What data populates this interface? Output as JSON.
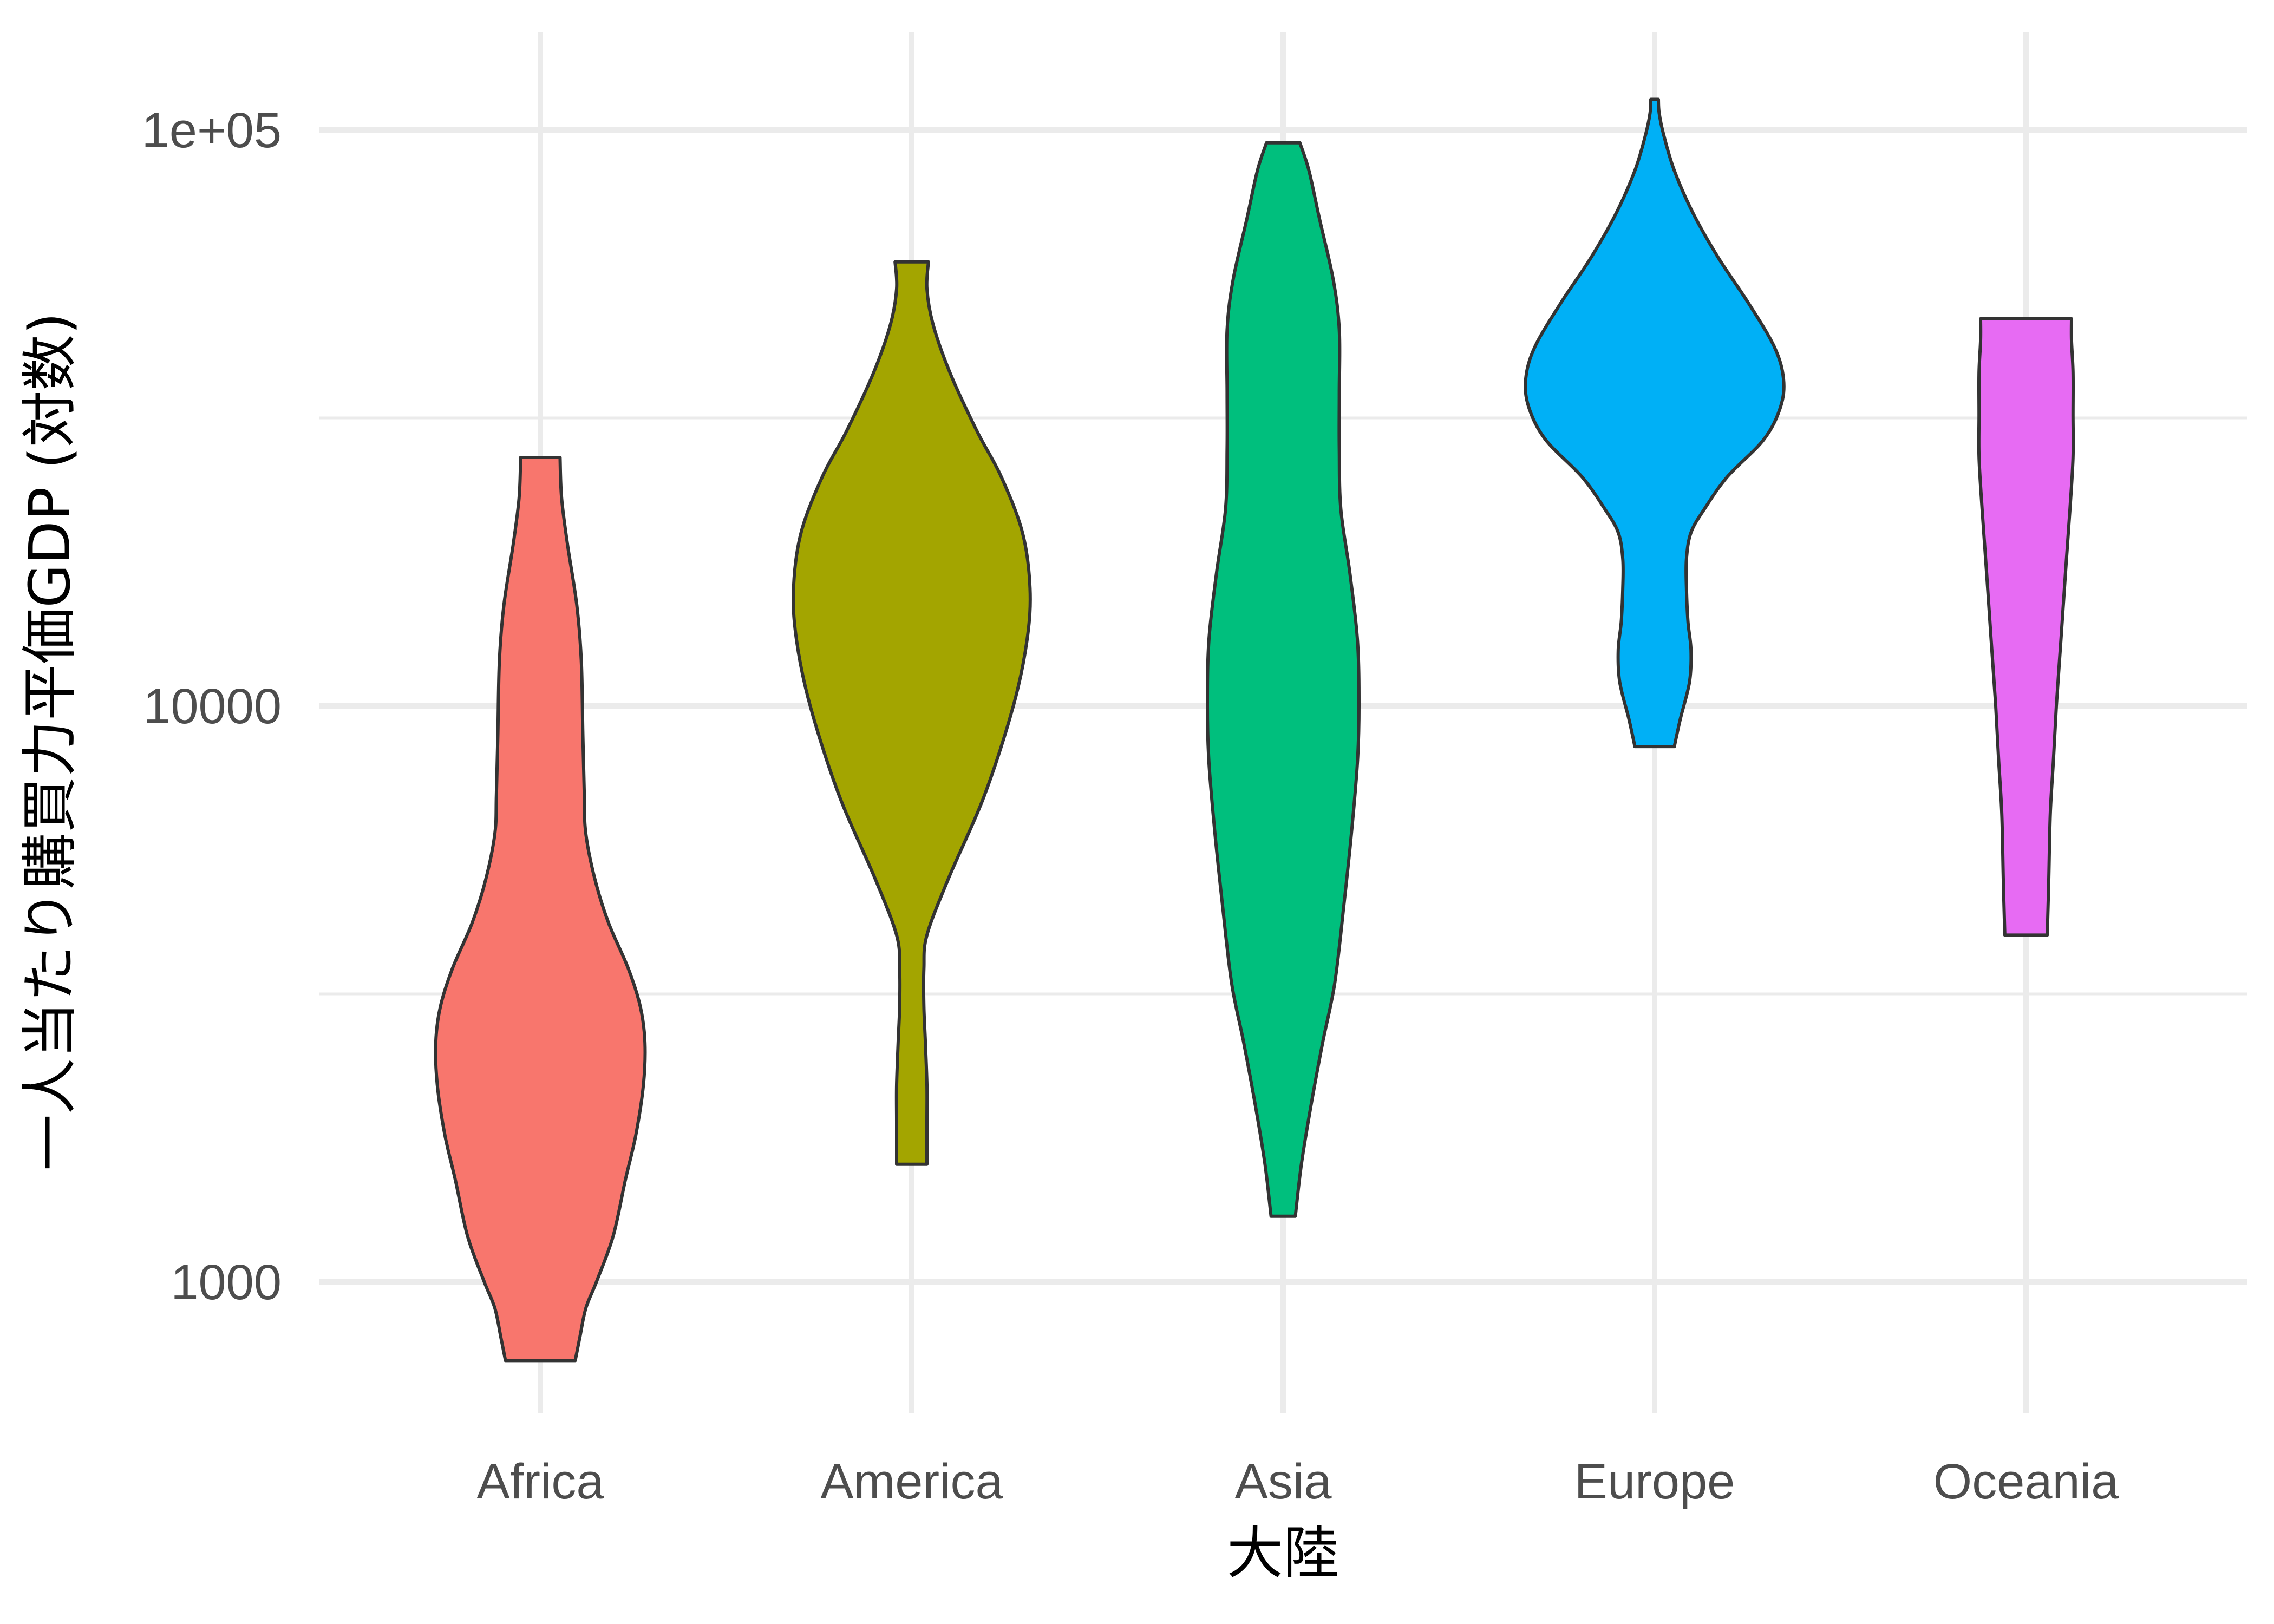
{
  "chart_data": {
    "type": "violin",
    "xlabel": "大陸",
    "ylabel": "一人当たり購買力平価GDP (対数)",
    "y_scale": "log10",
    "ylim": [
      500,
      150000
    ],
    "y_ticks": [
      {
        "value": 1000,
        "label": "1000"
      },
      {
        "value": 10000,
        "label": "10000"
      },
      {
        "value": 100000,
        "label": "1e+05"
      }
    ],
    "y_minor_ticks": [
      3162,
      31623
    ],
    "grid": true,
    "legend": "none",
    "categories": [
      "Africa",
      "America",
      "Asia",
      "Europe",
      "Oceania"
    ],
    "series": [
      {
        "category": "Africa",
        "color": "#F8766D",
        "min": 730,
        "max": 27000,
        "profile": [
          [
            730,
            0.23
          ],
          [
            800,
            0.26
          ],
          [
            900,
            0.3
          ],
          [
            1000,
            0.37
          ],
          [
            1200,
            0.48
          ],
          [
            1500,
            0.56
          ],
          [
            1800,
            0.63
          ],
          [
            2200,
            0.68
          ],
          [
            2600,
            0.69
          ],
          [
            3000,
            0.66
          ],
          [
            3500,
            0.58
          ],
          [
            4200,
            0.45
          ],
          [
            5000,
            0.36
          ],
          [
            6000,
            0.3
          ],
          [
            7000,
            0.29
          ],
          [
            9000,
            0.28
          ],
          [
            12000,
            0.27
          ],
          [
            15000,
            0.24
          ],
          [
            19000,
            0.18
          ],
          [
            23000,
            0.14
          ],
          [
            27000,
            0.13
          ]
        ]
      },
      {
        "category": "America",
        "color": "#A3A500",
        "min": 1600,
        "max": 59000,
        "profile": [
          [
            1600,
            0.1
          ],
          [
            1900,
            0.1
          ],
          [
            2200,
            0.1
          ],
          [
            2600,
            0.09
          ],
          [
            3000,
            0.08
          ],
          [
            3500,
            0.08
          ],
          [
            4000,
            0.1
          ],
          [
            5000,
            0.24
          ],
          [
            7000,
            0.48
          ],
          [
            10000,
            0.67
          ],
          [
            13000,
            0.76
          ],
          [
            16000,
            0.78
          ],
          [
            20000,
            0.73
          ],
          [
            25000,
            0.59
          ],
          [
            30000,
            0.43
          ],
          [
            38000,
            0.25
          ],
          [
            46000,
            0.14
          ],
          [
            53000,
            0.1
          ],
          [
            59000,
            0.11
          ]
        ]
      },
      {
        "category": "Asia",
        "color": "#00BF7D",
        "min": 1300,
        "max": 95000,
        "profile": [
          [
            1300,
            0.08
          ],
          [
            1600,
            0.12
          ],
          [
            2000,
            0.18
          ],
          [
            2600,
            0.26
          ],
          [
            3300,
            0.34
          ],
          [
            4500,
            0.4
          ],
          [
            6000,
            0.45
          ],
          [
            8000,
            0.49
          ],
          [
            10000,
            0.5
          ],
          [
            13000,
            0.49
          ],
          [
            17000,
            0.44
          ],
          [
            22000,
            0.38
          ],
          [
            28000,
            0.37
          ],
          [
            35000,
            0.37
          ],
          [
            45000,
            0.37
          ],
          [
            55000,
            0.33
          ],
          [
            70000,
            0.24
          ],
          [
            85000,
            0.17
          ],
          [
            95000,
            0.11
          ]
        ]
      },
      {
        "category": "Europe",
        "color": "#00B0F6",
        "min": 8500,
        "max": 113000,
        "profile": [
          [
            8500,
            0.13
          ],
          [
            9500,
            0.17
          ],
          [
            11000,
            0.23
          ],
          [
            12500,
            0.24
          ],
          [
            14000,
            0.22
          ],
          [
            16000,
            0.21
          ],
          [
            18000,
            0.21
          ],
          [
            20000,
            0.24
          ],
          [
            22000,
            0.33
          ],
          [
            25000,
            0.48
          ],
          [
            29000,
            0.72
          ],
          [
            33000,
            0.83
          ],
          [
            37000,
            0.85
          ],
          [
            42000,
            0.79
          ],
          [
            50000,
            0.62
          ],
          [
            60000,
            0.42
          ],
          [
            72000,
            0.25
          ],
          [
            85000,
            0.13
          ],
          [
            98000,
            0.06
          ],
          [
            107000,
            0.03
          ],
          [
            113000,
            0.025
          ]
        ]
      },
      {
        "category": "Oceania",
        "color": "#E76BF3",
        "min": 4000,
        "max": 47000,
        "profile": [
          [
            4000,
            0.14
          ],
          [
            5000,
            0.15
          ],
          [
            6500,
            0.16
          ],
          [
            8000,
            0.18
          ],
          [
            10000,
            0.2
          ],
          [
            13000,
            0.23
          ],
          [
            17000,
            0.26
          ],
          [
            22000,
            0.29
          ],
          [
            27000,
            0.31
          ],
          [
            32000,
            0.31
          ],
          [
            38000,
            0.31
          ],
          [
            43000,
            0.3
          ],
          [
            47000,
            0.3
          ]
        ]
      }
    ]
  }
}
